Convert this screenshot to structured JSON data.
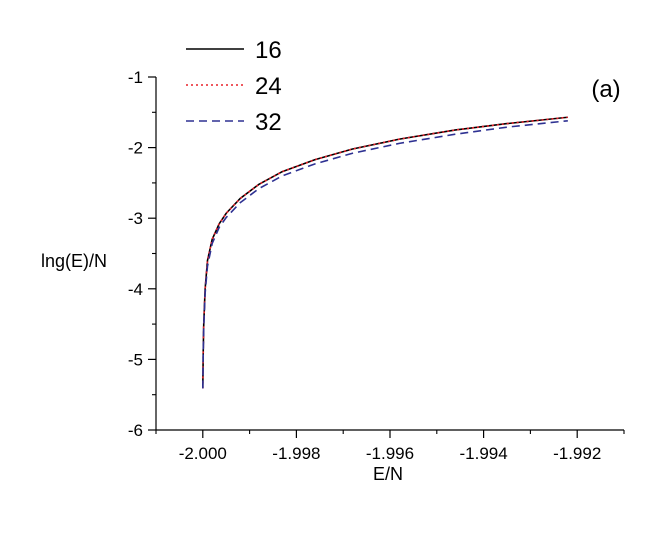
{
  "chart_data": {
    "type": "line",
    "title": "",
    "xlabel": "E/N",
    "ylabel": "lng(E)/N",
    "annotation": "(a)",
    "xlim": [
      -2.001,
      -1.991
    ],
    "ylim": [
      -6,
      -1
    ],
    "xticks": [
      -2.0,
      -1.998,
      -1.996,
      -1.994,
      -1.992
    ],
    "xtick_labels": [
      "-2.000",
      "-1.998",
      "-1.996",
      "-1.994",
      "-1.992"
    ],
    "yticks": [
      -6,
      -5,
      -4,
      -3,
      -2,
      -1
    ],
    "ytick_labels": [
      "-6",
      "-5",
      "-4",
      "-3",
      "-2",
      "-1"
    ],
    "grid": false,
    "legend_position": "top-left",
    "series": [
      {
        "name": "16",
        "color": "#000000",
        "style": "solid",
        "x": [
          -2.0,
          -1.99999,
          -1.99998,
          -1.99995,
          -1.9999,
          -1.9998,
          -1.99965,
          -1.9995,
          -1.9992,
          -1.9988,
          -1.9983,
          -1.9976,
          -1.9968,
          -1.9958,
          -1.9946,
          -1.9935,
          -1.9922
        ],
        "y": [
          -5.41,
          -4.85,
          -4.5,
          -4.0,
          -3.6,
          -3.3,
          -3.08,
          -2.93,
          -2.72,
          -2.52,
          -2.34,
          -2.17,
          -2.02,
          -1.88,
          -1.75,
          -1.66,
          -1.57
        ]
      },
      {
        "name": "24",
        "color": "#e8202a",
        "style": "dotted",
        "x": [
          -2.0,
          -1.99999,
          -1.99998,
          -1.99995,
          -1.9999,
          -1.9998,
          -1.99965,
          -1.9995,
          -1.9992,
          -1.9988,
          -1.9983,
          -1.9976,
          -1.9968,
          -1.9958,
          -1.9946,
          -1.9935,
          -1.9922
        ],
        "y": [
          -5.41,
          -4.85,
          -4.5,
          -4.0,
          -3.6,
          -3.3,
          -3.08,
          -2.93,
          -2.72,
          -2.52,
          -2.34,
          -2.17,
          -2.02,
          -1.88,
          -1.75,
          -1.66,
          -1.57
        ]
      },
      {
        "name": "32",
        "color": "#2e3192",
        "style": "dashed",
        "x": [
          -2.0,
          -1.99999,
          -1.99998,
          -1.99995,
          -1.9999,
          -1.9998,
          -1.99965,
          -1.9995,
          -1.9992,
          -1.9988,
          -1.9983,
          -1.9976,
          -1.9968,
          -1.9958,
          -1.9946,
          -1.9935,
          -1.9922
        ],
        "y": [
          -5.41,
          -4.87,
          -4.55,
          -4.06,
          -3.68,
          -3.36,
          -3.13,
          -2.99,
          -2.78,
          -2.58,
          -2.4,
          -2.23,
          -2.08,
          -1.94,
          -1.81,
          -1.71,
          -1.62
        ]
      }
    ]
  }
}
